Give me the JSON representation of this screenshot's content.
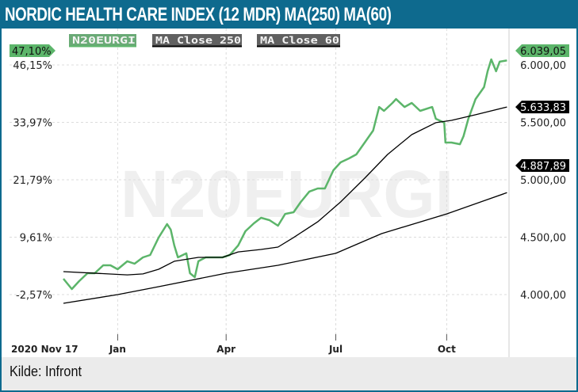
{
  "header": {
    "title": "Nordic Health Care Index (12 mdr) MA(250) MA(60)"
  },
  "footer": {
    "source": "Kilde: Infront"
  },
  "colors": {
    "frame": "#0e6a8e",
    "index": "#5cb56a",
    "ma": "#000000",
    "footer_bg": "#ebebeb"
  },
  "chart_data": {
    "type": "line",
    "watermark": "N20EURGI",
    "start_label": "2020 Nov 17",
    "x_ticks": [
      {
        "date": "2021-01-01",
        "label": "Jan"
      },
      {
        "date": "2021-04-01",
        "label": "Apr"
      },
      {
        "date": "2021-07-01",
        "label": "Jul"
      },
      {
        "date": "2021-10-01",
        "label": "Oct"
      }
    ],
    "y_right_ticks": [
      {
        "value": 6000,
        "label": "6.000,00"
      },
      {
        "value": 5500,
        "label": "5.500,00"
      },
      {
        "value": 5000,
        "label": "5.000,00"
      },
      {
        "value": 4500,
        "label": "4.500,00"
      },
      {
        "value": 4000,
        "label": "4.000,00"
      }
    ],
    "y_left_ticks": [
      {
        "value": 6000,
        "label": "46,15%"
      },
      {
        "value": 5500,
        "label": "33,97%"
      },
      {
        "value": 5000,
        "label": "21,79%"
      },
      {
        "value": 4500,
        "label": "9,61%"
      },
      {
        "value": 4000,
        "label": "-2,57%"
      }
    ],
    "grid": true,
    "legend_position": "top",
    "series": [
      {
        "name": "N20EURGI",
        "color": "#5cb56a",
        "last_label": "6.039,05",
        "last_pct_label": "47,10%",
        "points": [
          [
            "2020-11-17",
            4138
          ],
          [
            "2020-11-24",
            4048
          ],
          [
            "2020-11-30",
            4117
          ],
          [
            "2020-12-07",
            4186
          ],
          [
            "2020-12-13",
            4186
          ],
          [
            "2020-12-20",
            4255
          ],
          [
            "2020-12-26",
            4255
          ],
          [
            "2021-01-01",
            4221
          ],
          [
            "2021-01-09",
            4290
          ],
          [
            "2021-01-15",
            4269
          ],
          [
            "2021-01-22",
            4324
          ],
          [
            "2021-01-28",
            4345
          ],
          [
            "2021-02-04",
            4497
          ],
          [
            "2021-02-11",
            4614
          ],
          [
            "2021-02-14",
            4566
          ],
          [
            "2021-02-17",
            4428
          ],
          [
            "2021-02-20",
            4324
          ],
          [
            "2021-02-27",
            4359
          ],
          [
            "2021-03-02",
            4186
          ],
          [
            "2021-03-06",
            4152
          ],
          [
            "2021-03-09",
            4290
          ],
          [
            "2021-03-15",
            4324
          ],
          [
            "2021-03-29",
            4324
          ],
          [
            "2021-04-04",
            4345
          ],
          [
            "2021-04-11",
            4428
          ],
          [
            "2021-04-17",
            4552
          ],
          [
            "2021-04-24",
            4621
          ],
          [
            "2021-04-30",
            4669
          ],
          [
            "2021-05-07",
            4648
          ],
          [
            "2021-05-14",
            4600
          ],
          [
            "2021-05-20",
            4703
          ],
          [
            "2021-05-27",
            4717
          ],
          [
            "2021-06-02",
            4807
          ],
          [
            "2021-06-09",
            4897
          ],
          [
            "2021-06-16",
            4924
          ],
          [
            "2021-06-22",
            4924
          ],
          [
            "2021-06-29",
            5083
          ],
          [
            "2021-07-05",
            5152
          ],
          [
            "2021-07-12",
            5186
          ],
          [
            "2021-07-18",
            5221
          ],
          [
            "2021-07-25",
            5324
          ],
          [
            "2021-08-01",
            5428
          ],
          [
            "2021-08-06",
            5634
          ],
          [
            "2021-08-10",
            5600
          ],
          [
            "2021-08-17",
            5669
          ],
          [
            "2021-08-20",
            5703
          ],
          [
            "2021-08-27",
            5634
          ],
          [
            "2021-09-02",
            5669
          ],
          [
            "2021-09-09",
            5600
          ],
          [
            "2021-09-19",
            5634
          ],
          [
            "2021-09-22",
            5531
          ],
          [
            "2021-09-29",
            5497
          ],
          [
            "2021-09-30",
            5324
          ],
          [
            "2021-10-05",
            5324
          ],
          [
            "2021-10-12",
            5310
          ],
          [
            "2021-10-15",
            5379
          ],
          [
            "2021-10-19",
            5531
          ],
          [
            "2021-10-25",
            5703
          ],
          [
            "2021-11-01",
            5807
          ],
          [
            "2021-11-04",
            5945
          ],
          [
            "2021-11-07",
            6048
          ],
          [
            "2021-11-11",
            5945
          ],
          [
            "2021-11-14",
            6028
          ],
          [
            "2021-11-20",
            6039.05
          ]
        ]
      },
      {
        "name": "MA Close 250",
        "color": "#000000",
        "last_label": "4.887,89",
        "points": [
          [
            "2020-11-17",
            3924
          ],
          [
            "2021-01-01",
            4000
          ],
          [
            "2021-02-04",
            4069
          ],
          [
            "2021-04-01",
            4186
          ],
          [
            "2021-05-14",
            4255
          ],
          [
            "2021-07-01",
            4359
          ],
          [
            "2021-08-08",
            4531
          ],
          [
            "2021-10-01",
            4703
          ],
          [
            "2021-11-20",
            4887.89
          ]
        ]
      },
      {
        "name": "MA Close 60",
        "color": "#000000",
        "last_label": "5.633,83",
        "points": [
          [
            "2020-11-17",
            4200
          ],
          [
            "2021-01-09",
            4172
          ],
          [
            "2021-01-22",
            4180
          ],
          [
            "2021-02-04",
            4221
          ],
          [
            "2021-02-17",
            4290
          ],
          [
            "2021-03-09",
            4324
          ],
          [
            "2021-03-29",
            4324
          ],
          [
            "2021-04-11",
            4372
          ],
          [
            "2021-04-30",
            4393
          ],
          [
            "2021-05-14",
            4414
          ],
          [
            "2021-05-27",
            4497
          ],
          [
            "2021-06-16",
            4634
          ],
          [
            "2021-07-05",
            4807
          ],
          [
            "2021-07-25",
            5014
          ],
          [
            "2021-08-13",
            5221
          ],
          [
            "2021-09-02",
            5393
          ],
          [
            "2021-09-22",
            5497
          ],
          [
            "2021-10-05",
            5517
          ],
          [
            "2021-10-25",
            5566
          ],
          [
            "2021-11-20",
            5633.83
          ]
        ]
      }
    ]
  }
}
